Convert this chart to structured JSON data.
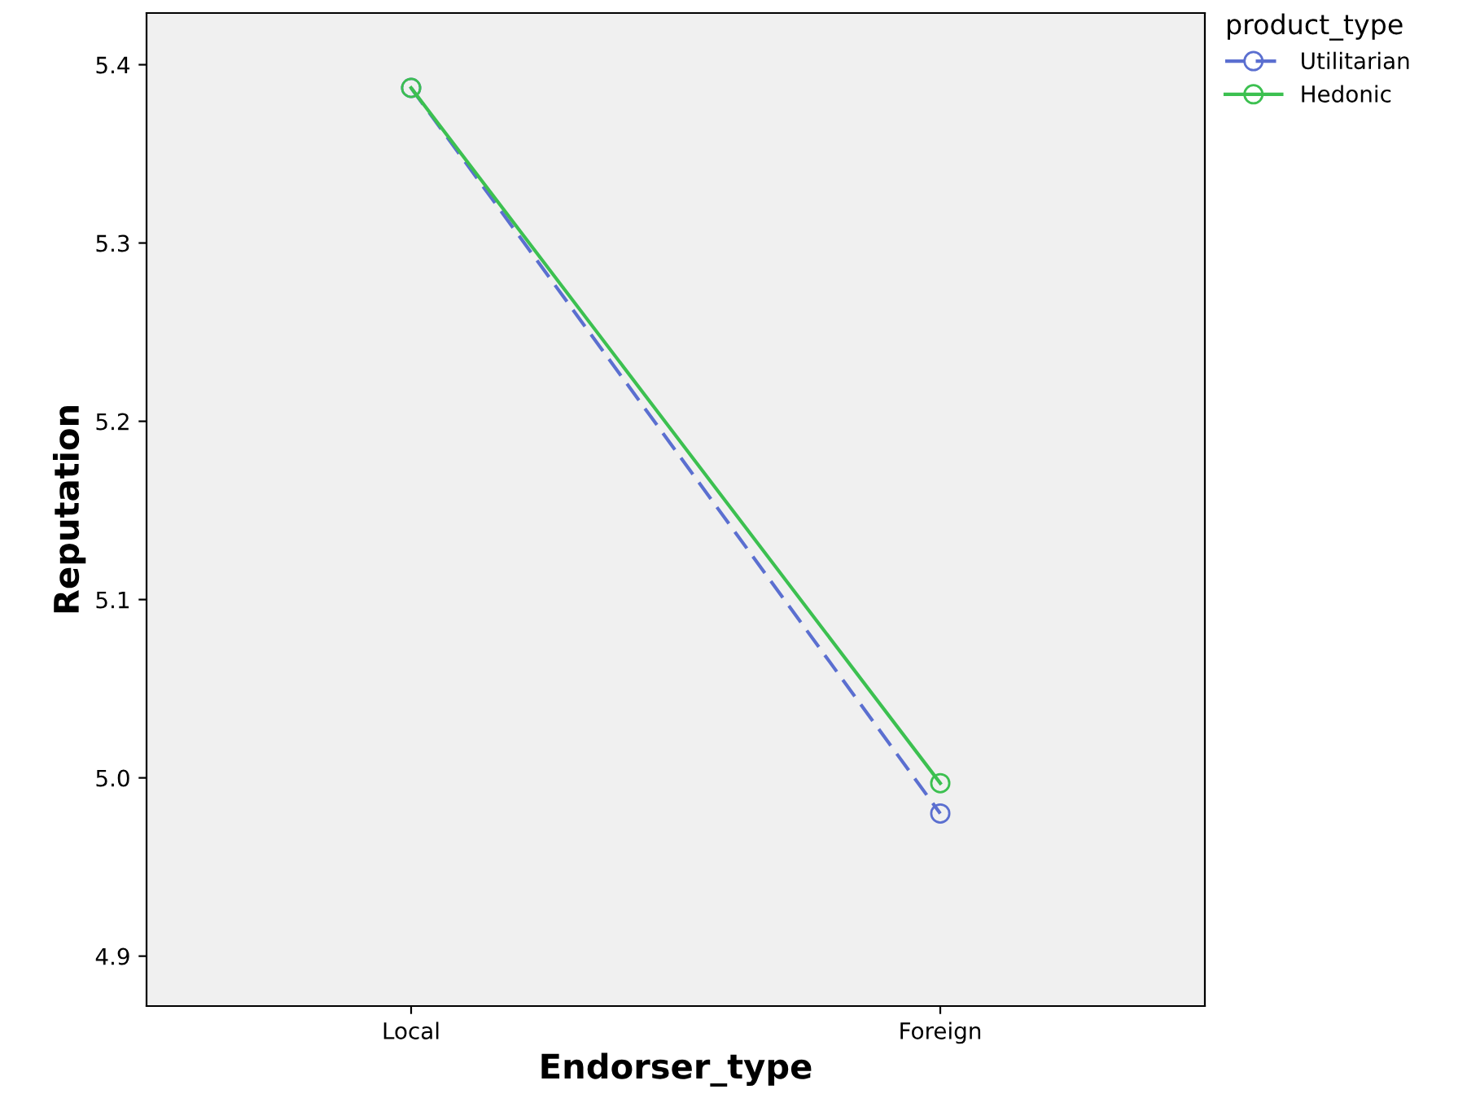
{
  "chart_data": {
    "type": "line",
    "xlabel": "Endorser_type",
    "ylabel": "Reputation",
    "legend_title": "product_type",
    "categories": [
      "Local",
      "Foreign"
    ],
    "series": [
      {
        "name": "Utilitarian",
        "color": "#5b6fd0",
        "values": [
          5.387,
          4.98
        ],
        "line_style": "dashed"
      },
      {
        "name": "Hedonic",
        "color": "#3cc050",
        "values": [
          5.387,
          4.997
        ],
        "line_style": "solid"
      }
    ],
    "ylim": [
      4.872,
      5.429
    ],
    "yticks": [
      {
        "value": 4.9,
        "label": "4.9"
      },
      {
        "value": 5.0,
        "label": "5.0"
      },
      {
        "value": 5.1,
        "label": "5.1"
      },
      {
        "value": 5.2,
        "label": "5.2"
      },
      {
        "value": 5.3,
        "label": "5.3"
      },
      {
        "value": 5.4,
        "label": "5.4"
      }
    ],
    "marker": "circle",
    "legend": "top right",
    "grid": false
  }
}
